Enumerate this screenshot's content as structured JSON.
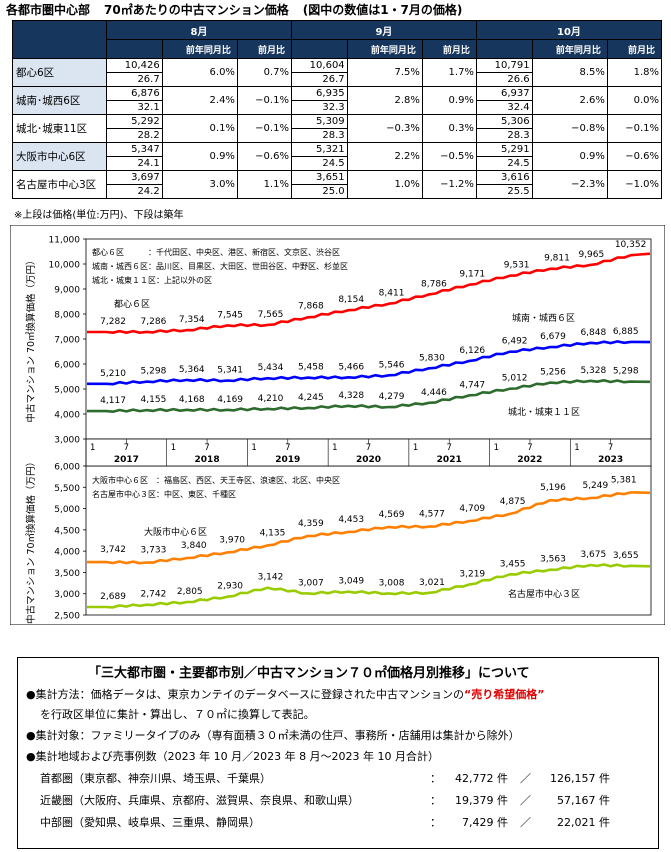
{
  "header": {
    "title": "各都市圏中心部",
    "subtitle": "70㎡あたりの中古マンション価格",
    "note": "(図中の数値は1・7月の価格)"
  },
  "price_table": {
    "months": [
      "8月",
      "9月",
      "10月"
    ],
    "sub_yoy": "前年同月比",
    "sub_mom": "前月比",
    "rows": [
      {
        "region": "都心6区",
        "cells": [
          {
            "price": "10,426",
            "age": "26.7",
            "yoy": "6.0%",
            "mom": "0.7%"
          },
          {
            "price": "10,604",
            "age": "26.7",
            "yoy": "7.5%",
            "mom": "1.7%"
          },
          {
            "price": "10,791",
            "age": "26.6",
            "yoy": "8.5%",
            "mom": "1.8%"
          }
        ]
      },
      {
        "region": "城南･城西6区",
        "cells": [
          {
            "price": "6,876",
            "age": "32.1",
            "yoy": "2.4%",
            "mom": "−0.1%"
          },
          {
            "price": "6,935",
            "age": "32.3",
            "yoy": "2.8%",
            "mom": "0.9%"
          },
          {
            "price": "6,937",
            "age": "32.4",
            "yoy": "2.6%",
            "mom": "0.0%"
          }
        ]
      },
      {
        "region": "城北･城東11区",
        "cells": [
          {
            "price": "5,292",
            "age": "28.2",
            "yoy": "0.1%",
            "mom": "−0.1%"
          },
          {
            "price": "5,309",
            "age": "28.3",
            "yoy": "−0.3%",
            "mom": "0.3%"
          },
          {
            "price": "5,306",
            "age": "28.3",
            "yoy": "−0.8%",
            "mom": "−0.1%"
          }
        ]
      },
      {
        "region": "大阪市中心6区",
        "cells": [
          {
            "price": "5,347",
            "age": "24.1",
            "yoy": "0.9%",
            "mom": "−0.6%"
          },
          {
            "price": "5,321",
            "age": "24.5",
            "yoy": "2.2%",
            "mom": "−0.5%"
          },
          {
            "price": "5,291",
            "age": "24.5",
            "yoy": "0.9%",
            "mom": "−0.6%"
          }
        ]
      },
      {
        "region": "名古屋市中心3区",
        "cells": [
          {
            "price": "3,697",
            "age": "24.2",
            "yoy": "3.0%",
            "mom": "1.1%"
          },
          {
            "price": "3,651",
            "age": "25.0",
            "yoy": "1.0%",
            "mom": "−1.2%"
          },
          {
            "price": "3,616",
            "age": "25.5",
            "yoy": "−2.3%",
            "mom": "−1.0%"
          }
        ]
      }
    ],
    "footnote": "※上段は価格(単位:万円)、下段は築年"
  },
  "chart_data": [
    {
      "type": "line",
      "ylabel": "中古マンション 70㎡換算価格（万円）",
      "ylim": [
        3000,
        11000
      ],
      "yticks": [
        "3,000",
        "4,000",
        "5,000",
        "6,000",
        "7,000",
        "8,000",
        "9,000",
        "10,000",
        "11,000"
      ],
      "x_ticks": [
        "1",
        "7",
        "1",
        "7",
        "1",
        "7",
        "1",
        "7",
        "1",
        "7",
        "1",
        "7",
        "1",
        "7"
      ],
      "x_years": [
        "2017",
        "2018",
        "2019",
        "2020",
        "2021",
        "2022",
        "2023"
      ],
      "legend_lines": [
        "都心６区　　　：千代田区、中央区、港区、新宿区、文京区、渋谷区",
        "城南・城西６区：品川区、目黒区、大田区、世田谷区、中野区、杉並区",
        "城北・城東１１区：上記以外の区"
      ],
      "series": [
        {
          "name": "都心６区",
          "color": "#ff0000",
          "values": [
            7282,
            7286,
            7354,
            7545,
            7565,
            7868,
            8154,
            8411,
            8786,
            9171,
            9531,
            9811,
            9965,
            10352
          ],
          "labels": [
            "7,282",
            "7,286",
            "7,354",
            "7,545",
            "7,565",
            "7,868",
            "8,154",
            "8,411",
            "8,786",
            "9,171",
            "9,531",
            "9,811",
            "9,965",
            "10,352"
          ]
        },
        {
          "name": "城南・城西６区",
          "color": "#0000ff",
          "values": [
            5210,
            5298,
            5364,
            5341,
            5434,
            5458,
            5466,
            5546,
            5830,
            6126,
            6492,
            6679,
            6848,
            6885
          ],
          "labels": [
            "5,210",
            "5,298",
            "5,364",
            "5,341",
            "5,434",
            "5,458",
            "5,466",
            "5,546",
            "5,830",
            "6,126",
            "6,492",
            "6,679",
            "6,848",
            "6,885"
          ]
        },
        {
          "name": "城北・城東１１区",
          "color": "#2e6b2e",
          "values": [
            4117,
            4155,
            4168,
            4169,
            4210,
            4245,
            4328,
            4279,
            4446,
            4747,
            5012,
            5256,
            5328,
            5298
          ],
          "labels": [
            "4,117",
            "4,155",
            "4,168",
            "4,169",
            "4,210",
            "4,245",
            "4,328",
            "4,279",
            "4,446",
            "4,747",
            "5,012",
            "5,256",
            "5,328",
            "5,298"
          ]
        }
      ]
    },
    {
      "type": "line",
      "ylabel": "中古マンション 70㎡換算価格（万円）",
      "ylim": [
        2500,
        6000
      ],
      "yticks": [
        "2,500",
        "3,000",
        "3,500",
        "4,000",
        "4,500",
        "5,000",
        "5,500",
        "6,000"
      ],
      "legend_lines": [
        "大阪市中心６区　：福島区、西区、天王寺区、浪速区、北区、中央区",
        "名古屋市中心３区：中区、東区、千種区"
      ],
      "series": [
        {
          "name": "大阪市中心６区",
          "color": "#ff7f00",
          "values": [
            3742,
            3733,
            3840,
            3970,
            4135,
            4359,
            4453,
            4569,
            4577,
            4709,
            4875,
            5196,
            5249,
            5381
          ],
          "labels": [
            "3,742",
            "3,733",
            "3,840",
            "3,970",
            "4,135",
            "4,359",
            "4,453",
            "4,569",
            "4,577",
            "4,709",
            "4,875",
            "5,196",
            "5,249",
            "5,381"
          ]
        },
        {
          "name": "名古屋市中心３区",
          "color": "#99cc00",
          "values": [
            2689,
            2742,
            2805,
            2930,
            3142,
            3007,
            3049,
            3008,
            3021,
            3219,
            3455,
            3563,
            3675,
            3655
          ],
          "labels": [
            "2,689",
            "2,742",
            "2,805",
            "2,930",
            "3,142",
            "3,007",
            "3,049",
            "3,008",
            "3,021",
            "3,219",
            "3,455",
            "3,563",
            "3,675",
            "3,655"
          ]
        }
      ]
    }
  ],
  "about": {
    "heading": "「三大都市圏・主要都市別／中古マンション７０㎡価格月別推移」について",
    "method_a": "●集計方法：価格データは、東京カンテイのデータベースに登録された中古マンションの",
    "method_red": "“売り希望価格”",
    "method_b": "を行政区単位に集計・算出し、７０㎡に換算して表記。",
    "target": "●集計対象：ファミリータイプのみ（専有面積３０㎡未満の住戸、事務所・店舗用は集計から除外）",
    "area": "●集計地域および売事例数（2023 年 10 月／2023 年 8 月～2023 年 10 月合計）",
    "regions": [
      {
        "name": "首都圏（東京都、神奈川県、埼玉県、千葉県）",
        "a": "42,772 件",
        "b": "126,157 件"
      },
      {
        "name": "近畿圏（大阪府、兵庫県、京都府、滋賀県、奈良県、和歌山県）",
        "a": "19,379 件",
        "b": "57,167 件"
      },
      {
        "name": "中部圏（愛知県、岐阜県、三重県、静岡県）",
        "a": "7,429 件",
        "b": "22,021 件"
      }
    ],
    "sep": "／",
    "colon": "："
  }
}
